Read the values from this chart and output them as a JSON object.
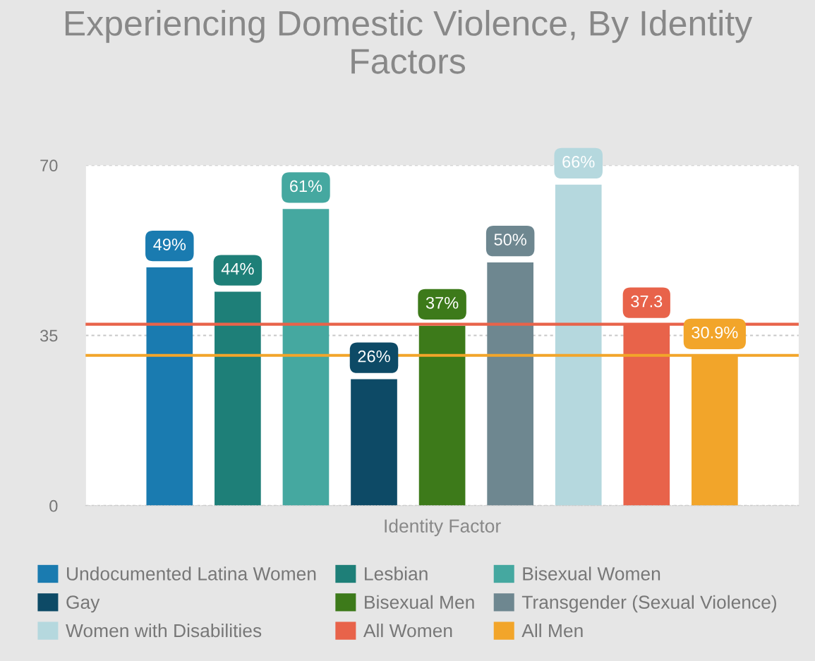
{
  "chart_data": {
    "type": "bar",
    "title": "Experiencing Domestic Violence, By Identity Factors",
    "xlabel": "Identity Factor",
    "categories": [
      null
    ],
    "series": [
      {
        "name": "Undocumented Latina Women",
        "color": "#1a7bb0",
        "values": [
          49
        ],
        "value_labels": [
          "49%"
        ]
      },
      {
        "name": "Lesbian",
        "color": "#1e7f78",
        "values": [
          44
        ],
        "value_labels": [
          "44%"
        ]
      },
      {
        "name": "Bisexual Women",
        "color": "#45a8a0",
        "values": [
          61
        ],
        "value_labels": [
          "61%"
        ]
      },
      {
        "name": "Gay",
        "color": "#0d4a66",
        "values": [
          26
        ],
        "value_labels": [
          "26%"
        ]
      },
      {
        "name": "Bisexual Men",
        "color": "#3d7a1a",
        "values": [
          37
        ],
        "value_labels": [
          "37%"
        ]
      },
      {
        "name": "Transgender (Sexual Violence)",
        "color": "#6e8790",
        "values": [
          50
        ],
        "value_labels": [
          "50%"
        ]
      },
      {
        "name": "Women with Disabilities",
        "color": "#b5d8de",
        "values": [
          66
        ],
        "value_labels": [
          "66%"
        ]
      },
      {
        "name": "All Women",
        "color": "#e8634a",
        "values": [
          37.3
        ],
        "value_labels": [
          "37.3"
        ]
      },
      {
        "name": "All Men",
        "color": "#f2a52a",
        "values": [
          30.9
        ],
        "value_labels": [
          "30.9%"
        ]
      }
    ],
    "ref_lines": [
      {
        "axis": "y",
        "value": 37.3,
        "label": null,
        "color": "#e8634a"
      },
      {
        "axis": "y",
        "value": 30.9,
        "label": null,
        "color": "#f2a52a"
      }
    ],
    "ylim": [
      0,
      70
    ],
    "yticks": [
      0,
      35,
      70
    ],
    "grid": "y",
    "legend": "bottom"
  }
}
